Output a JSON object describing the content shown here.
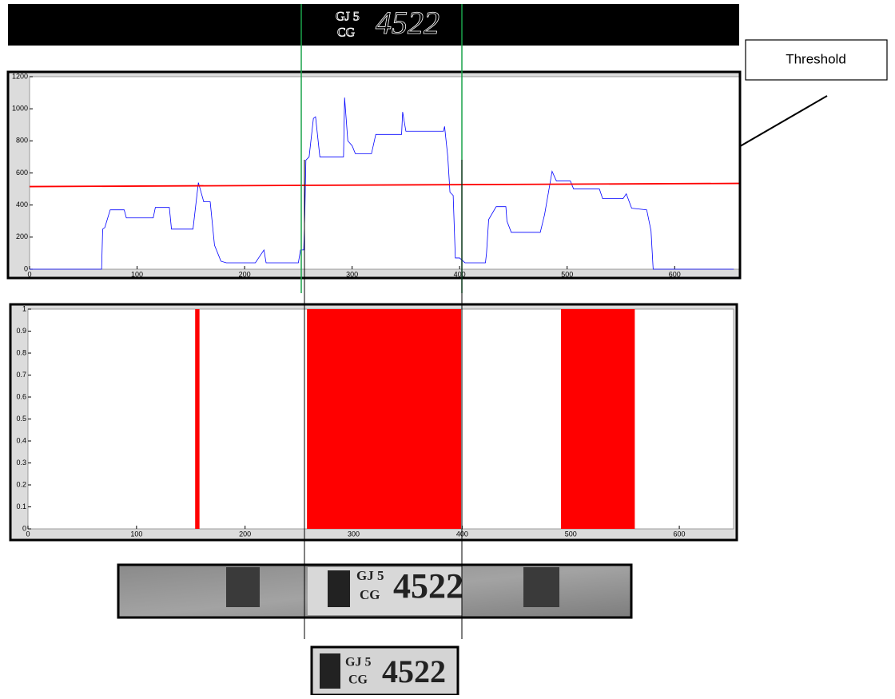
{
  "annotation": {
    "threshold_label": "Threshold"
  },
  "plate": {
    "line1": "GJ 5",
    "line2": "CG",
    "number": "4522"
  },
  "chart_data": [
    {
      "type": "line",
      "xlim": [
        0,
        660
      ],
      "ylim": [
        0,
        1200
      ],
      "xticks": [
        0,
        100,
        200,
        300,
        400,
        500,
        600
      ],
      "yticks": [
        0,
        200,
        400,
        600,
        800,
        1000,
        1200
      ],
      "series": [
        {
          "color": "#0000ff",
          "x": [
            0,
            67,
            68,
            70,
            75,
            88,
            90,
            115,
            117,
            130,
            132,
            152,
            157,
            162,
            168,
            172,
            178,
            183,
            210,
            214,
            218,
            220,
            250,
            252,
            255,
            256,
            257,
            260,
            264,
            266,
            270,
            292,
            293,
            296,
            300,
            303,
            318,
            322,
            346,
            347,
            350,
            385,
            386,
            389,
            391,
            394,
            396,
            400,
            405,
            424,
            425,
            427,
            434,
            443,
            444,
            448,
            475,
            479,
            486,
            490,
            503,
            506,
            530,
            533,
            552,
            555,
            560,
            574,
            578,
            580,
            655
          ],
          "values": [
            0,
            0,
            250,
            260,
            370,
            370,
            320,
            320,
            385,
            385,
            250,
            250,
            540,
            420,
            420,
            150,
            50,
            40,
            40,
            80,
            120,
            40,
            40,
            120,
            120,
            340,
            680,
            700,
            940,
            950,
            700,
            700,
            1070,
            800,
            770,
            720,
            720,
            840,
            840,
            980,
            860,
            860,
            890,
            700,
            480,
            460,
            70,
            70,
            40,
            40,
            100,
            310,
            390,
            390,
            300,
            230,
            230,
            340,
            610,
            550,
            550,
            500,
            500,
            440,
            440,
            470,
            380,
            370,
            240,
            0,
            0
          ]
        },
        {
          "color": "#ff0000",
          "x": [
            0,
            660
          ],
          "values": [
            515,
            535
          ]
        }
      ]
    },
    {
      "type": "bar",
      "xlim": [
        0,
        650
      ],
      "ylim": [
        0,
        1
      ],
      "xticks": [
        0,
        100,
        200,
        300,
        400,
        500,
        600
      ],
      "yticks": [
        0,
        0.1,
        0.2,
        0.3,
        0.4,
        0.5,
        0.6,
        0.7,
        0.8,
        0.9,
        1
      ],
      "color": "#ff0000",
      "x_start": [
        154,
        257,
        491
      ],
      "x_end": [
        158,
        399,
        559
      ],
      "values": [
        1,
        1,
        1
      ]
    }
  ]
}
